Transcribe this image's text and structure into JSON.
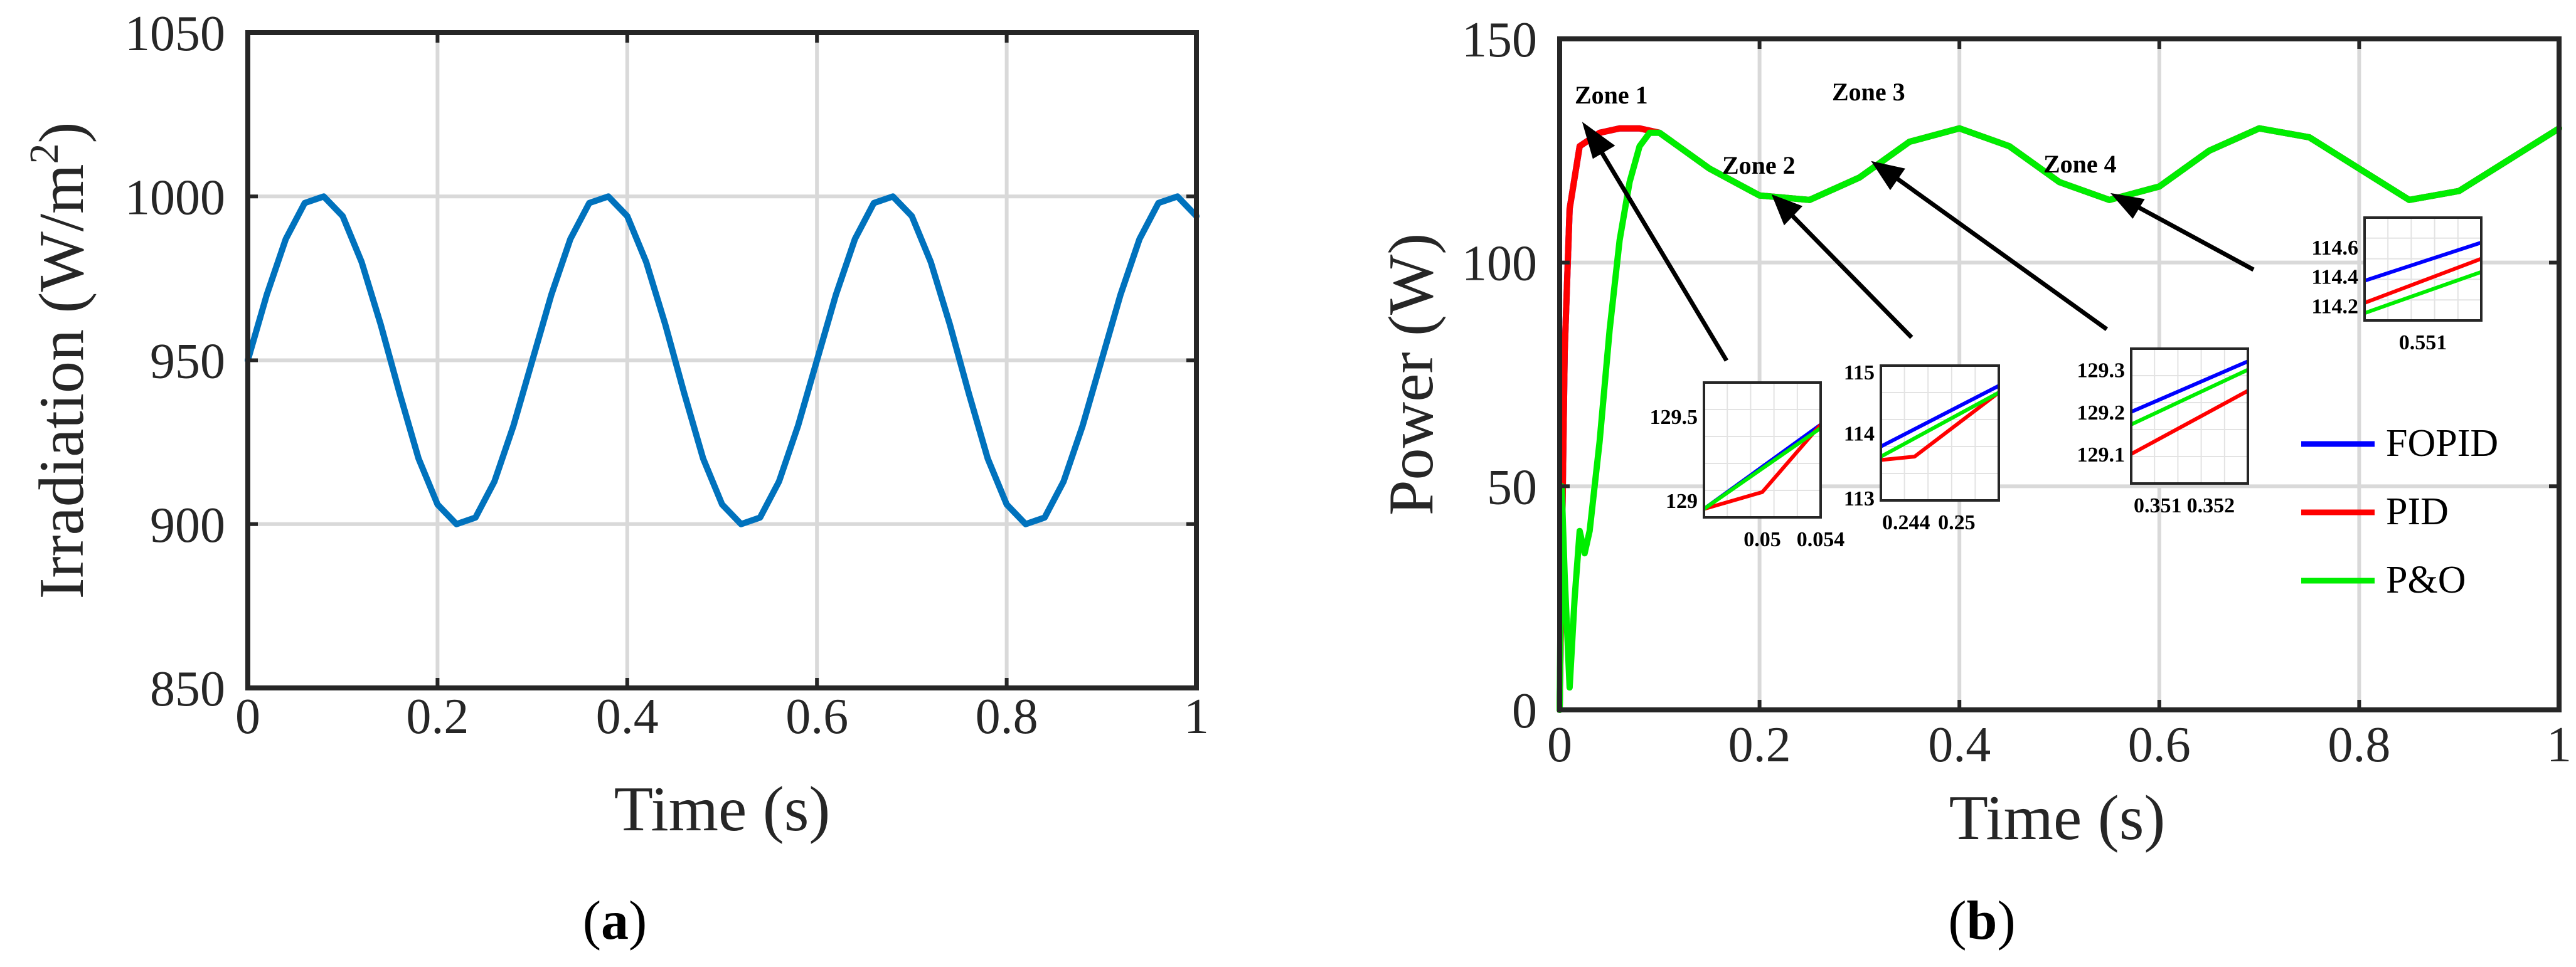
{
  "chart_data": [
    {
      "type": "line",
      "panel_label": "a",
      "xlabel": "Time (s)",
      "ylabel": "Irradiation (W/m",
      "ylabel_sup": "2",
      "ylabel_close": ")",
      "xlim": [
        0,
        1
      ],
      "ylim": [
        850,
        1050
      ],
      "xticks": [
        0,
        0.2,
        0.4,
        0.6,
        0.8,
        1
      ],
      "xtick_labels": [
        "0",
        "0.2",
        "0.4",
        "0.6",
        "0.8",
        "1"
      ],
      "yticks": [
        850,
        900,
        950,
        1000,
        1050
      ],
      "ytick_labels": [
        "850",
        "900",
        "950",
        "1000",
        "1050"
      ],
      "grid": true,
      "series": [
        {
          "color": "#0072bd",
          "x": [
            0,
            0.02,
            0.04,
            0.06,
            0.08,
            0.1,
            0.12,
            0.14,
            0.16,
            0.18,
            0.2,
            0.22,
            0.24,
            0.26,
            0.28,
            0.3,
            0.32,
            0.34,
            0.36,
            0.38,
            0.4,
            0.42,
            0.44,
            0.46,
            0.48,
            0.5,
            0.52,
            0.54,
            0.56,
            0.58,
            0.6,
            0.62,
            0.64,
            0.66,
            0.68,
            0.7,
            0.72,
            0.74,
            0.76,
            0.78,
            0.8,
            0.82,
            0.84,
            0.86,
            0.88,
            0.9,
            0.92,
            0.94,
            0.96,
            0.98,
            1.0
          ],
          "y": [
            950,
            970,
            987,
            998,
            1000,
            994,
            980,
            961,
            940,
            920,
            906,
            900,
            902,
            913,
            930,
            950,
            970,
            987,
            998,
            1000,
            994,
            980,
            961,
            940,
            920,
            906,
            900,
            902,
            913,
            930,
            950,
            970,
            987,
            998,
            1000,
            994,
            980,
            961,
            940,
            920,
            906,
            900,
            902,
            913,
            930,
            950,
            970,
            987,
            998,
            1000,
            994
          ]
        }
      ]
    },
    {
      "type": "line",
      "panel_label": "b",
      "xlabel": "Time (s)",
      "ylabel": "Power (W)",
      "xlim": [
        0,
        1
      ],
      "ylim": [
        0,
        150
      ],
      "xticks": [
        0,
        0.2,
        0.4,
        0.6,
        0.8,
        1
      ],
      "xtick_labels": [
        "0",
        "0.2",
        "0.4",
        "0.6",
        "0.8",
        "1"
      ],
      "yticks": [
        0,
        50,
        100,
        150
      ],
      "ytick_labels": [
        "0",
        "50",
        "100",
        "150"
      ],
      "grid": true,
      "legend_position": "right",
      "legend": [
        "FOPID",
        "PID",
        "P&O"
      ],
      "series": [
        {
          "name": "FOPID",
          "color": "#0000ff",
          "x": [
            0,
            0.005,
            0.01,
            0.02,
            0.04,
            0.06,
            0.08,
            0.1,
            0.15,
            0.2,
            0.25,
            0.3,
            0.35,
            0.4,
            0.45,
            0.5,
            0.55,
            0.6,
            0.65,
            0.7,
            0.75,
            0.8,
            0.85,
            0.9,
            0.95,
            1.0
          ],
          "y": [
            0,
            80,
            112,
            126,
            129,
            130,
            130,
            129,
            121,
            115,
            114,
            119,
            127,
            130,
            126,
            118,
            114,
            117,
            125,
            130,
            128,
            121,
            114,
            116,
            123,
            130
          ]
        },
        {
          "name": "PID",
          "color": "#ff0000",
          "x": [
            0,
            0.005,
            0.01,
            0.02,
            0.04,
            0.06,
            0.08,
            0.1,
            0.15,
            0.2,
            0.25,
            0.3,
            0.35,
            0.4,
            0.45,
            0.5,
            0.55,
            0.6,
            0.65,
            0.7,
            0.75,
            0.8,
            0.85,
            0.9,
            0.95,
            1.0
          ],
          "y": [
            0,
            80,
            112,
            126,
            129,
            130,
            130,
            129,
            121,
            115,
            114,
            119,
            127,
            130,
            126,
            118,
            114,
            117,
            125,
            130,
            128,
            121,
            114,
            116,
            123,
            130
          ]
        },
        {
          "name": "P&O",
          "color": "#00ee00",
          "x": [
            0,
            0.002,
            0.005,
            0.01,
            0.015,
            0.02,
            0.025,
            0.03,
            0.04,
            0.05,
            0.06,
            0.07,
            0.08,
            0.09,
            0.1,
            0.15,
            0.2,
            0.25,
            0.3,
            0.35,
            0.4,
            0.45,
            0.5,
            0.55,
            0.6,
            0.65,
            0.7,
            0.75,
            0.8,
            0.85,
            0.9,
            0.95,
            1.0
          ],
          "y": [
            0,
            50,
            30,
            5,
            25,
            40,
            35,
            40,
            60,
            85,
            105,
            118,
            126,
            129,
            129,
            121,
            115,
            114,
            119,
            127,
            130,
            126,
            118,
            114,
            117,
            125,
            130,
            128,
            121,
            114,
            116,
            123,
            130
          ]
        }
      ],
      "annotations": [
        "Zone 1",
        "Zone 2",
        "Zone 3",
        "Zone 4"
      ],
      "insets": [
        {
          "zone": "Zone 1",
          "xticks": [
            "0.05",
            "0.054"
          ],
          "yticks": [
            "129.5",
            "129"
          ],
          "xlim": [
            0.046,
            0.054
          ],
          "ylim": [
            128.9,
            129.7
          ],
          "lines": [
            {
              "x": [
                0.046,
                0.054
              ],
              "y": [
                128.95,
                129.45
              ]
            },
            {
              "x": [
                0.046,
                0.05,
                0.054
              ],
              "y": [
                128.95,
                129.05,
                129.45
              ]
            },
            {
              "x": [
                0.046,
                0.054
              ],
              "y": [
                128.95,
                129.43
              ]
            }
          ]
        },
        {
          "zone": "Zone 2",
          "xticks": [
            "0.244",
            "0.25"
          ],
          "yticks": [
            "115",
            "114",
            "113"
          ],
          "xlim": [
            0.241,
            0.255
          ],
          "ylim": [
            113,
            115
          ],
          "lines": [
            {
              "x": [
                0.241,
                0.255
              ],
              "y": [
                113.8,
                114.7
              ]
            },
            {
              "x": [
                0.241,
                0.245,
                0.255
              ],
              "y": [
                113.6,
                113.65,
                114.6
              ]
            },
            {
              "x": [
                0.241,
                0.255
              ],
              "y": [
                113.65,
                114.6
              ]
            }
          ]
        },
        {
          "zone": "Zone 3",
          "xticks": [
            "0.351",
            "0.352"
          ],
          "yticks": [
            "129.3",
            "129.2",
            "129.1"
          ],
          "xlim": [
            0.3505,
            0.3527
          ],
          "ylim": [
            129.03,
            129.35
          ],
          "lines": [
            {
              "x": [
                0.3505,
                0.3527
              ],
              "y": [
                129.2,
                129.32
              ]
            },
            {
              "x": [
                0.3505,
                0.3527
              ],
              "y": [
                129.1,
                129.25
              ]
            },
            {
              "x": [
                0.3505,
                0.3527
              ],
              "y": [
                129.17,
                129.3
              ]
            }
          ]
        },
        {
          "zone": "Zone 4",
          "xticks": [
            "0.551"
          ],
          "yticks": [
            "114.6",
            "114.4",
            "114.2"
          ],
          "xlim": [
            0.5495,
            0.5525
          ],
          "ylim": [
            114.1,
            114.8
          ],
          "lines": [
            {
              "x": [
                0.5495,
                0.5525
              ],
              "y": [
                114.37,
                114.63
              ]
            },
            {
              "x": [
                0.5495,
                0.5525
              ],
              "y": [
                114.22,
                114.52
              ]
            },
            {
              "x": [
                0.5495,
                0.5525
              ],
              "y": [
                114.15,
                114.43
              ]
            }
          ]
        }
      ]
    }
  ]
}
